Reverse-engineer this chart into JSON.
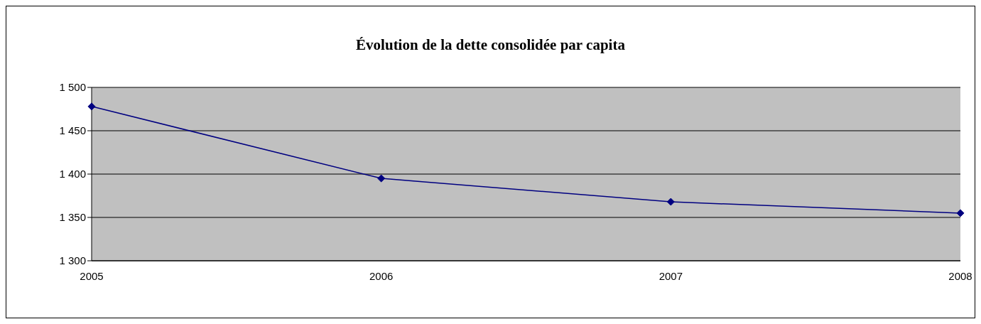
{
  "chart_data": {
    "type": "line",
    "title": "Évolution de la dette consolidée par capita",
    "categories": [
      "2005",
      "2006",
      "2007",
      "2008"
    ],
    "series": [
      {
        "color": "#000080",
        "values": [
          1478,
          1395,
          1368,
          1355
        ]
      }
    ],
    "ylim": [
      1300,
      1500
    ],
    "yticks": [
      {
        "value": 1300,
        "label": "1 300"
      },
      {
        "value": 1350,
        "label": "1 350"
      },
      {
        "value": 1400,
        "label": "1 400"
      },
      {
        "value": 1450,
        "label": "1 450"
      },
      {
        "value": 1500,
        "label": "1 500"
      }
    ],
    "grid": "y",
    "marker": "diamond",
    "line_style": "solid"
  }
}
